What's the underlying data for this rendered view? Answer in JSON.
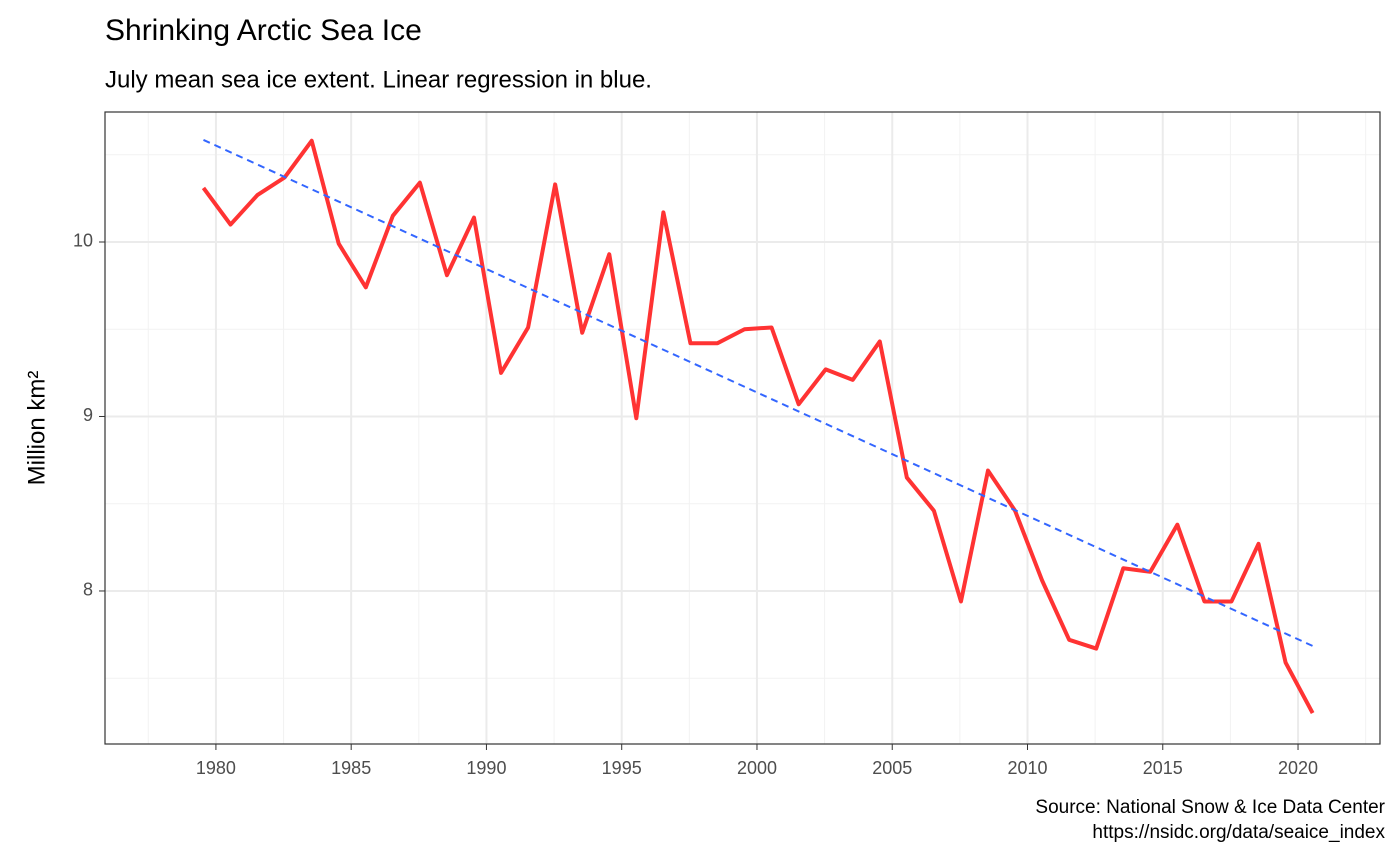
{
  "chart_data": {
    "type": "line",
    "title": "Shrinking Arctic Sea Ice",
    "subtitle": "July mean sea ice extent. Linear regression in blue.",
    "ylabel": "Million km²",
    "caption": [
      "Source: National Snow & Ice Data Center",
      "https://nsidc.org/data/seaice_index"
    ],
    "x": [
      1979.54,
      1980.54,
      1981.54,
      1982.54,
      1983.54,
      1984.54,
      1985.54,
      1986.54,
      1987.54,
      1988.54,
      1989.54,
      1990.54,
      1991.54,
      1992.54,
      1993.54,
      1994.54,
      1995.54,
      1996.54,
      1997.54,
      1998.54,
      1999.54,
      2000.54,
      2001.54,
      2002.54,
      2003.54,
      2004.54,
      2005.54,
      2006.54,
      2007.54,
      2008.54,
      2009.54,
      2010.54,
      2011.54,
      2012.54,
      2013.54,
      2014.54,
      2015.54,
      2016.54,
      2017.54,
      2018.54,
      2019.54,
      2020.54
    ],
    "values": [
      10.31,
      10.1,
      10.27,
      10.37,
      10.58,
      9.99,
      9.74,
      10.15,
      10.34,
      9.81,
      10.14,
      9.25,
      9.51,
      10.33,
      9.48,
      9.93,
      8.99,
      10.17,
      9.42,
      9.42,
      9.5,
      9.51,
      9.07,
      9.27,
      9.21,
      9.43,
      8.65,
      8.46,
      7.94,
      8.69,
      8.46,
      8.06,
      7.72,
      7.67,
      8.13,
      8.11,
      8.38,
      7.94,
      7.94,
      8.27,
      7.59,
      7.3
    ],
    "color": "#ff3333",
    "trend": {
      "x": [
        1979.54,
        2020.54
      ],
      "values": [
        10.585,
        7.685
      ],
      "color": "#3366ff",
      "dash": true
    },
    "xlim": [
      1975.9,
      2023.03
    ],
    "ylim": [
      7.123,
      10.745
    ],
    "xticks": [
      1980,
      1985,
      1990,
      1995,
      2000,
      2005,
      2010,
      2015,
      2020
    ],
    "yticks": [
      8,
      9,
      10
    ],
    "x_minor_grid": [
      1977.5,
      1982.5,
      1987.5,
      1992.5,
      1997.5,
      2002.5,
      2007.5,
      2012.5,
      2017.5,
      2022.5
    ],
    "y_minor_grid": [
      7.5,
      8.5,
      9.5,
      10.5
    ],
    "grid": true
  }
}
